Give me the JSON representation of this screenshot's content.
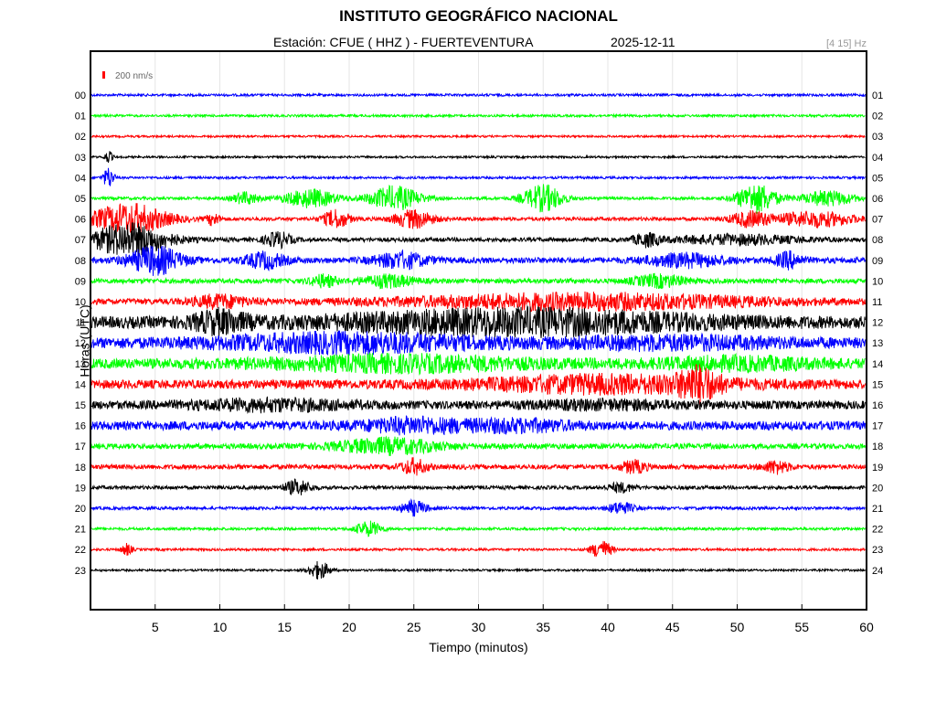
{
  "header": {
    "title": "INSTITUTO GEOGRÁFICO NACIONAL",
    "station_label": "Estación:  CFUE ( HHZ ) - FUERTEVENTURA",
    "date": "2025-12-11",
    "band": "[4 15] Hz"
  },
  "chart_data": {
    "type": "line",
    "title": "INSTITUTO GEOGRÁFICO NACIONAL",
    "xlabel": "Tiempo (minutos)",
    "ylabel": "Horas (UTC)",
    "xlim": [
      0,
      60
    ],
    "x_ticks": [
      "5",
      "10",
      "15",
      "20",
      "25",
      "30",
      "35",
      "40",
      "45",
      "50",
      "55",
      "60"
    ],
    "left_hour_labels": [
      "00",
      "01",
      "02",
      "03",
      "04",
      "05",
      "06",
      "07",
      "08",
      "09",
      "10",
      "11",
      "12",
      "13",
      "14",
      "15",
      "16",
      "17",
      "18",
      "19",
      "20",
      "21",
      "22",
      "23"
    ],
    "right_hour_labels": [
      "01",
      "02",
      "03",
      "04",
      "05",
      "06",
      "07",
      "08",
      "09",
      "10",
      "11",
      "12",
      "13",
      "14",
      "15",
      "16",
      "17",
      "18",
      "19",
      "20",
      "21",
      "22",
      "23",
      "24"
    ],
    "scale_label": "200 nm/s",
    "series_colors": [
      "#0000ff",
      "#00ff00",
      "#ff0000",
      "#000000"
    ],
    "grid": true,
    "traces": [
      {
        "hour": "00",
        "color": "#0000ff",
        "base": 0.8,
        "bursts": []
      },
      {
        "hour": "01",
        "color": "#00ff00",
        "base": 0.8,
        "bursts": []
      },
      {
        "hour": "02",
        "color": "#ff0000",
        "base": 0.7,
        "bursts": []
      },
      {
        "hour": "03",
        "color": "#000000",
        "base": 0.7,
        "bursts": [
          [
            1.4,
            0.3,
            4
          ]
        ]
      },
      {
        "hour": "04",
        "color": "#0000ff",
        "base": 0.8,
        "bursts": [
          [
            1.4,
            0.4,
            7
          ]
        ]
      },
      {
        "hour": "05",
        "color": "#00ff00",
        "base": 1.0,
        "bursts": [
          [
            12,
            1,
            4
          ],
          [
            17,
            2,
            6
          ],
          [
            23.5,
            2,
            8
          ],
          [
            35,
            1.5,
            9
          ],
          [
            51.5,
            1.5,
            10
          ],
          [
            57,
            2,
            5
          ]
        ]
      },
      {
        "hour": "06",
        "color": "#ff0000",
        "base": 1.2,
        "bursts": [
          [
            3,
            3,
            10
          ],
          [
            9.5,
            0.5,
            4
          ],
          [
            19,
            1,
            6
          ],
          [
            25,
            1.5,
            6
          ],
          [
            51,
            1.5,
            5
          ],
          [
            56,
            3,
            5
          ]
        ]
      },
      {
        "hour": "07",
        "color": "#000000",
        "base": 1.4,
        "bursts": [
          [
            3,
            3,
            11
          ],
          [
            14.5,
            1,
            5
          ],
          [
            43,
            1,
            4
          ],
          [
            50,
            5,
            3
          ]
        ]
      },
      {
        "hour": "08",
        "color": "#0000ff",
        "base": 2.0,
        "bursts": [
          [
            5,
            2,
            9
          ],
          [
            13.5,
            1.5,
            5
          ],
          [
            24,
            2,
            5
          ],
          [
            46,
            3,
            4
          ],
          [
            54,
            1,
            5
          ]
        ]
      },
      {
        "hour": "09",
        "color": "#00ff00",
        "base": 1.6,
        "bursts": [
          [
            18,
            1,
            4
          ],
          [
            23,
            2,
            4
          ],
          [
            44,
            2,
            4
          ]
        ]
      },
      {
        "hour": "10",
        "color": "#ff0000",
        "base": 2.0,
        "bursts": [
          [
            38,
            14,
            5
          ],
          [
            10,
            2,
            4
          ]
        ]
      },
      {
        "hour": "11",
        "color": "#000000",
        "base": 4.0,
        "bursts": [
          [
            33,
            14,
            7
          ],
          [
            10,
            2,
            6
          ]
        ]
      },
      {
        "hour": "12",
        "color": "#0000ff",
        "base": 3.6,
        "bursts": [
          [
            20,
            10,
            5
          ],
          [
            45,
            8,
            3
          ]
        ]
      },
      {
        "hour": "13",
        "color": "#00ff00",
        "base": 3.4,
        "bursts": [
          [
            24,
            10,
            4
          ],
          [
            50,
            6,
            3
          ]
        ]
      },
      {
        "hour": "14",
        "color": "#ff0000",
        "base": 3.0,
        "bursts": [
          [
            40,
            10,
            5
          ],
          [
            47,
            1.5,
            9
          ]
        ]
      },
      {
        "hour": "15",
        "color": "#000000",
        "base": 2.8,
        "bursts": [
          [
            14,
            6,
            3
          ],
          [
            40,
            6,
            2
          ]
        ]
      },
      {
        "hour": "16",
        "color": "#0000ff",
        "base": 3.0,
        "bursts": [
          [
            25,
            4,
            4
          ],
          [
            33,
            4,
            3
          ]
        ]
      },
      {
        "hour": "17",
        "color": "#00ff00",
        "base": 1.8,
        "bursts": [
          [
            23,
            4,
            5
          ]
        ]
      },
      {
        "hour": "18",
        "color": "#ff0000",
        "base": 1.6,
        "bursts": [
          [
            25,
            1,
            5
          ],
          [
            42,
            1,
            4
          ],
          [
            53,
            1,
            4
          ]
        ]
      },
      {
        "hour": "19",
        "color": "#000000",
        "base": 1.2,
        "bursts": [
          [
            16,
            1,
            5
          ],
          [
            41,
            1,
            3
          ]
        ]
      },
      {
        "hour": "20",
        "color": "#0000ff",
        "base": 1.0,
        "bursts": [
          [
            25,
            1,
            5
          ],
          [
            41,
            1,
            4
          ]
        ]
      },
      {
        "hour": "21",
        "color": "#00ff00",
        "base": 0.9,
        "bursts": [
          [
            21.5,
            1,
            5
          ]
        ]
      },
      {
        "hour": "22",
        "color": "#ff0000",
        "base": 0.8,
        "bursts": [
          [
            39.5,
            0.8,
            6
          ],
          [
            2.8,
            0.4,
            4
          ]
        ]
      },
      {
        "hour": "23",
        "color": "#000000",
        "base": 0.7,
        "bursts": [
          [
            17.7,
            0.8,
            6
          ]
        ]
      }
    ]
  }
}
